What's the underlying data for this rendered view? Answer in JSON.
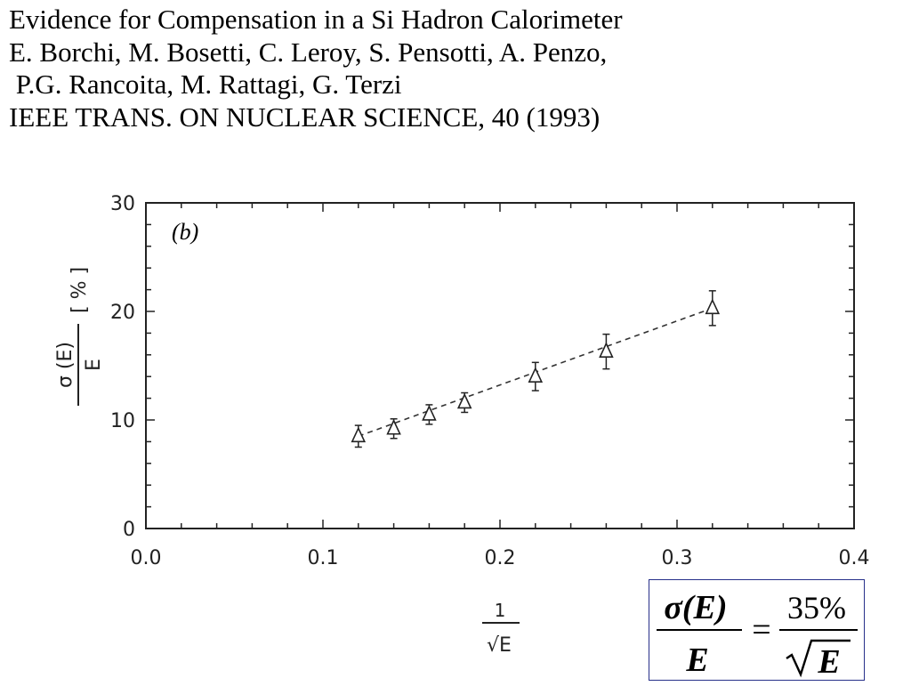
{
  "header": {
    "title": "Evidence for Compensation in a Si Hadron Calorimeter",
    "authors_line1": "E. Borchi, M. Bosetti, C. Leroy, S. Pensotti, A. Penzo,",
    "authors_line2": " P.G. Rancoita, M. Rattagi, G. Terzi",
    "journal": "IEEE TRANS. ON NUCLEAR SCIENCE, 40 (1993)"
  },
  "chart_data": {
    "type": "scatter",
    "panel_label": "(b)",
    "xlabel_num": "1",
    "xlabel_den": "√E",
    "ylabel_num": "σ (E)",
    "ylabel_den": "E",
    "ylabel_unit": "[ % ]",
    "xlim": [
      0.0,
      0.4
    ],
    "ylim": [
      0,
      30
    ],
    "x_ticks": [
      "0.0",
      "0.1",
      "0.2",
      "0.3",
      "0.4"
    ],
    "y_ticks": [
      "0",
      "10",
      "20",
      "30"
    ],
    "grid": false,
    "marker": "open-triangle",
    "points": [
      {
        "x": 0.12,
        "y": 8.5,
        "err": 1.0
      },
      {
        "x": 0.14,
        "y": 9.2,
        "err": 0.9
      },
      {
        "x": 0.16,
        "y": 10.5,
        "err": 0.9
      },
      {
        "x": 0.18,
        "y": 11.6,
        "err": 0.9
      },
      {
        "x": 0.22,
        "y": 14.0,
        "err": 1.3
      },
      {
        "x": 0.26,
        "y": 16.3,
        "err": 1.6
      },
      {
        "x": 0.32,
        "y": 20.3,
        "err": 1.6
      }
    ],
    "fit": {
      "style": "dashed",
      "slope_percent": 35
    }
  },
  "formula": {
    "lhs_num": "σ(E)",
    "lhs_den": "E",
    "equals": "=",
    "rhs_num": "35%",
    "rhs_den": "E"
  },
  "colors": {
    "text": "#000000",
    "axis": "#222222",
    "formula_border": "#27308a"
  }
}
